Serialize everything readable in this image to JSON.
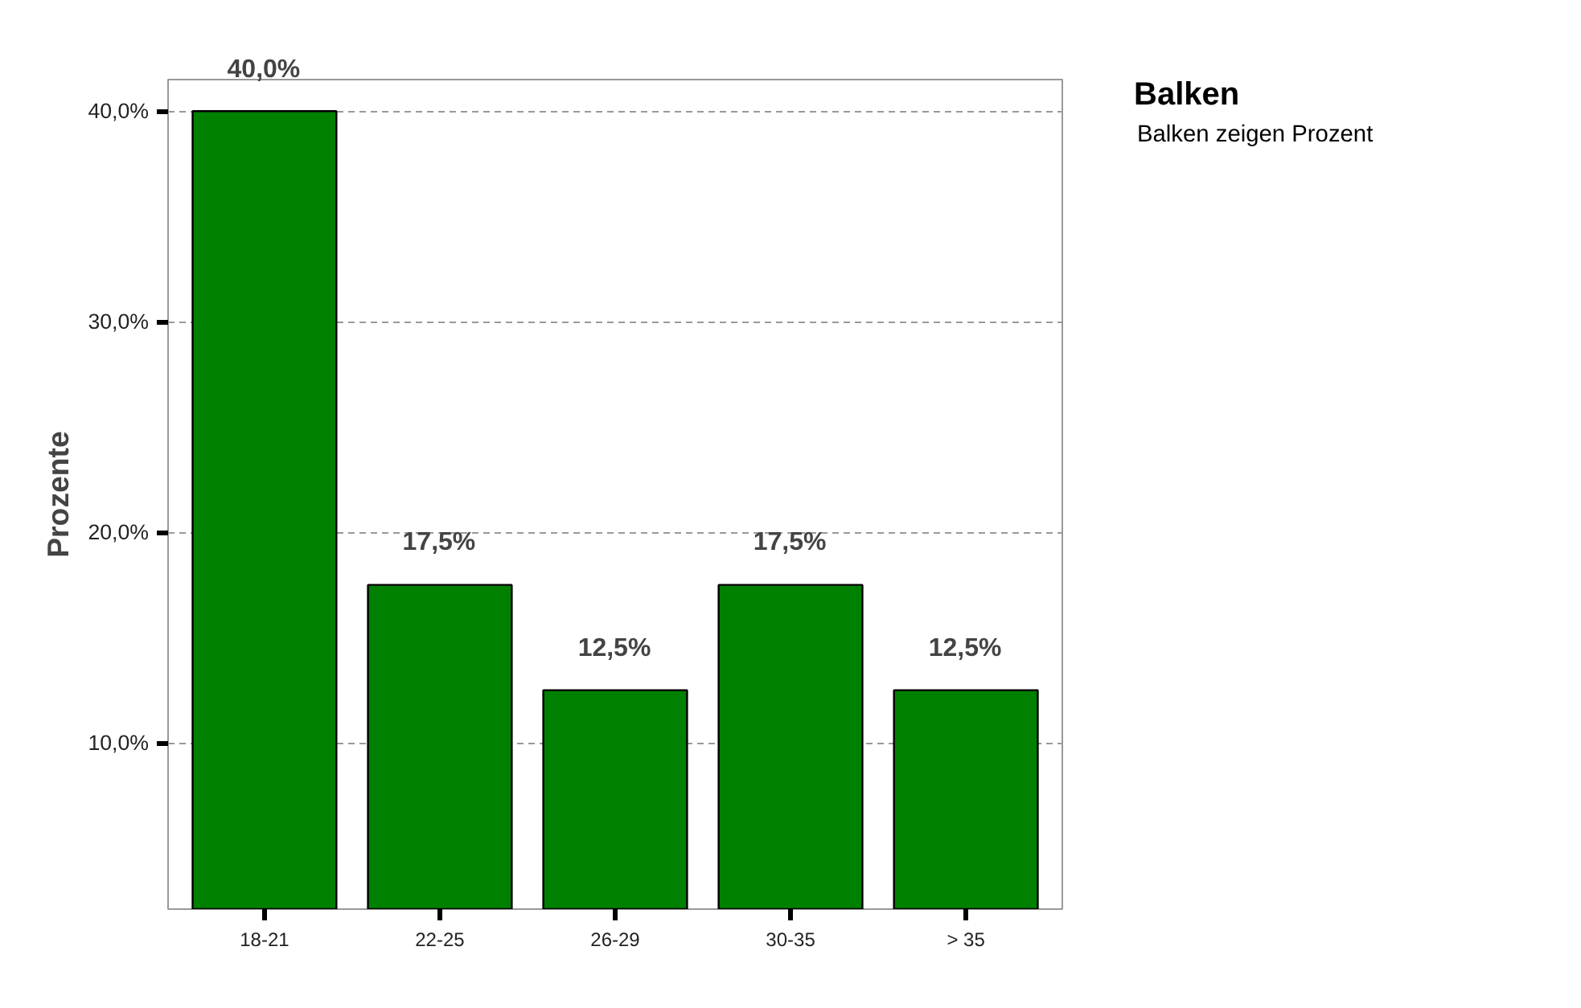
{
  "chart_data": {
    "type": "bar",
    "title": "Balken",
    "subtitle": "Balken zeigen Prozent",
    "ylabel": "Prozente",
    "categories": [
      "18-21",
      "22-25",
      "26-29",
      "30-35",
      "> 35"
    ],
    "values": [
      40.0,
      17.5,
      12.5,
      17.5,
      12.5
    ],
    "value_labels": [
      "40,0%",
      "17,5%",
      "12,5%",
      "17,5%",
      "12,5%"
    ],
    "color": "#008000",
    "ylim": [
      2.1,
      41.5
    ],
    "yticks": [
      {
        "value": 10,
        "label": "10,0%"
      },
      {
        "value": 20,
        "label": "20,0%"
      },
      {
        "value": 30,
        "label": "30,0%"
      },
      {
        "value": 40,
        "label": "40,0%"
      }
    ],
    "grid": "y"
  }
}
